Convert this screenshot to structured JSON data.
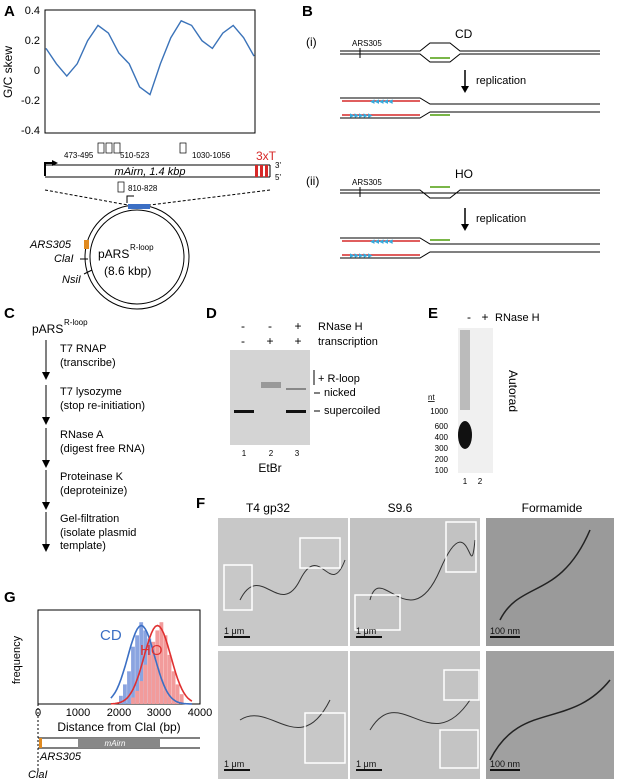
{
  "panels": {
    "A": {
      "letter": "A",
      "ylabel": "G/C skew",
      "yticks": [
        "0.4",
        "0.2",
        "0",
        "-0.2",
        "-0.4"
      ],
      "g4_labels": [
        "473-495",
        "510-523",
        "1030-1056"
      ],
      "g4_label_below": "810-828",
      "gene": "mAirn, 1.4 kbp",
      "three_x_t": "3xT",
      "strand_3": "3'",
      "strand_5": "5'",
      "plasmid_name": "pARS",
      "plasmid_sup": "R-loop",
      "plasmid_size": "(8.6 kbp)",
      "ars": "ARS305",
      "clai": "ClaI",
      "nsii": "NsiI"
    },
    "B": {
      "letter": "B",
      "i": "(i)",
      "ii": "(ii)",
      "cd": "CD",
      "ho": "HO",
      "ars": "ARS305",
      "replication": "replication"
    },
    "C": {
      "letter": "C",
      "title": "pARS",
      "title_sup": "R-loop",
      "steps": [
        {
          "name": "T7 RNAP",
          "desc": "(transcribe)"
        },
        {
          "name": "T7 lysozyme",
          "desc": "(stop re-initiation)"
        },
        {
          "name": "RNase A",
          "desc": "(digest free RNA)"
        },
        {
          "name": "Proteinase K",
          "desc": "(deproteinize)"
        },
        {
          "name": "Gel-filtration",
          "desc": "(isolate plasmid"
        }
      ],
      "last_line": "template)"
    },
    "D": {
      "letter": "D",
      "row1": [
        "-",
        "-",
        "+"
      ],
      "row1_label": "RNase H",
      "row2": [
        "-",
        "+",
        "+"
      ],
      "row2_label": "transcription",
      "band_rloop": "+ R-loop",
      "band_nicked": "nicked",
      "band_supercoiled": "supercoiled",
      "lanes": [
        "1",
        "2",
        "3"
      ],
      "stain": "EtBr"
    },
    "E": {
      "letter": "E",
      "header": [
        "-",
        "+"
      ],
      "rnase": "RNase H",
      "nt": "nt",
      "markers": [
        "1000",
        "600",
        "400",
        "300",
        "200",
        "100"
      ],
      "side": "Autorad",
      "lanes": [
        "1",
        "2"
      ]
    },
    "F": {
      "letter": "F",
      "columns": [
        "T4 gp32",
        "S9.6",
        "Formamide"
      ],
      "scale_1um": "1 μm",
      "scale_100nm": "100 nm"
    },
    "G": {
      "letter": "G",
      "ylabel": "frequency",
      "xlabel": "Distance from ClaI (bp)",
      "cd": "CD",
      "ho": "HO",
      "xticks": [
        "0",
        "1000",
        "2000",
        "3000",
        "4000"
      ],
      "gene": "mAirn",
      "ars": "ARS305",
      "clai": "ClaI"
    }
  },
  "colors": {
    "skew": "#3b73b9",
    "cd": "#3b6fc4",
    "ho": "#e03030",
    "red": "#d62828",
    "green": "#7ab648",
    "cyan": "#33aadd"
  },
  "chart_data": [
    {
      "type": "line",
      "ylabel": "G/C skew",
      "ylim": [
        -0.4,
        0.4
      ],
      "x": [
        0,
        1,
        2,
        3,
        4,
        5,
        6,
        7,
        8,
        9,
        10,
        11,
        12,
        13,
        14,
        15,
        16,
        17,
        18,
        19,
        20
      ],
      "values": [
        0.15,
        0.05,
        -0.03,
        0.05,
        0.2,
        0.3,
        0.25,
        0.12,
        0.05,
        -0.1,
        -0.15,
        0.05,
        0.22,
        0.33,
        0.3,
        0.2,
        0.15,
        0.25,
        0.3,
        0.22,
        0.1
      ]
    },
    {
      "type": "bar",
      "ylabel": "frequency",
      "xlabel": "Distance from ClaI (bp)",
      "xlim": [
        0,
        4000
      ],
      "series": [
        {
          "name": "CD",
          "x": [
            2000,
            2100,
            2200,
            2300,
            2400,
            2500,
            2600,
            2700,
            2800,
            2900,
            3000,
            3100,
            3200
          ],
          "values": [
            5,
            12,
            20,
            35,
            42,
            50,
            45,
            40,
            30,
            22,
            15,
            8,
            4
          ]
        },
        {
          "name": "HO",
          "x": [
            2300,
            2400,
            2500,
            2600,
            2700,
            2800,
            2900,
            3000,
            3100,
            3200,
            3300,
            3400,
            3500
          ],
          "values": [
            4,
            8,
            14,
            24,
            30,
            38,
            45,
            50,
            42,
            30,
            20,
            12,
            6
          ]
        }
      ]
    }
  ]
}
